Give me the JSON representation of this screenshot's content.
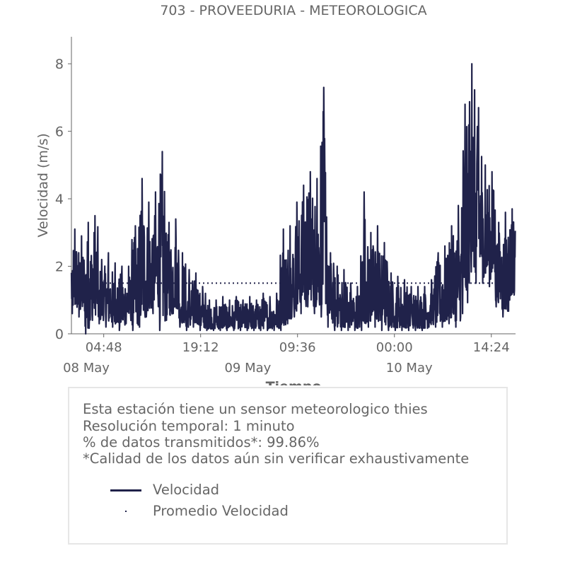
{
  "chart_data": {
    "type": "line",
    "title": "703 - PROVEEDURIA - METEOROLOGICA",
    "xlabel": "Tiempo",
    "ylabel": "Velocidad (m/s)",
    "ylim": [
      0,
      8.8
    ],
    "yticks": [
      0,
      2,
      4,
      6,
      8
    ],
    "x_range": [
      "2021-05-08 00:00",
      "2021-05-11 00:00"
    ],
    "xticks": [
      {
        "label": "04:48",
        "time": "2021-05-08 04:48"
      },
      {
        "label": "19:12",
        "time": "2021-05-08 19:12"
      },
      {
        "label": "09:36",
        "time": "2021-05-09 09:36"
      },
      {
        "label": "00:00",
        "time": "2021-05-10 00:00"
      },
      {
        "label": "14:24",
        "time": "2021-05-10 14:24"
      }
    ],
    "day_labels": [
      {
        "label": "08 May",
        "time": "2021-05-08 00:00"
      },
      {
        "label": "09 May",
        "time": "2021-05-09 00:00"
      },
      {
        "label": "10 May",
        "time": "2021-05-10 00:00"
      }
    ],
    "grid": false,
    "series": [
      {
        "name": "Velocidad",
        "color": "#20224a",
        "style": "solid",
        "hourly_envelope": [
          {
            "hour": "2021-05-08 00:00",
            "low": 0.6,
            "high": 3.1
          },
          {
            "hour": "2021-05-08 01:00",
            "low": 0.5,
            "high": 2.9
          },
          {
            "hour": "2021-05-08 02:00",
            "low": 0.0,
            "high": 3.3
          },
          {
            "hour": "2021-05-08 03:00",
            "low": 0.4,
            "high": 3.5
          },
          {
            "hour": "2021-05-08 04:00",
            "low": 0.3,
            "high": 2.2
          },
          {
            "hour": "2021-05-08 05:00",
            "low": 0.2,
            "high": 2.4
          },
          {
            "hour": "2021-05-08 06:00",
            "low": 0.2,
            "high": 2.1
          },
          {
            "hour": "2021-05-08 07:00",
            "low": 0.1,
            "high": 2.0
          },
          {
            "hour": "2021-05-08 08:00",
            "low": 0.3,
            "high": 2.0
          },
          {
            "hour": "2021-05-08 09:00",
            "low": 0.1,
            "high": 3.2
          },
          {
            "hour": "2021-05-08 10:00",
            "low": 0.2,
            "high": 4.6
          },
          {
            "hour": "2021-05-08 11:00",
            "low": 0.5,
            "high": 3.9
          },
          {
            "hour": "2021-05-08 12:00",
            "low": 0.6,
            "high": 4.2
          },
          {
            "hour": "2021-05-08 13:00",
            "low": 0.1,
            "high": 5.4
          },
          {
            "hour": "2021-05-08 14:00",
            "low": 0.4,
            "high": 3.3
          },
          {
            "hour": "2021-05-08 15:00",
            "low": 0.6,
            "high": 3.4
          },
          {
            "hour": "2021-05-08 16:00",
            "low": 0.2,
            "high": 2.4
          },
          {
            "hour": "2021-05-08 17:00",
            "low": 0.1,
            "high": 1.9
          },
          {
            "hour": "2021-05-08 18:00",
            "low": 0.2,
            "high": 1.8
          },
          {
            "hour": "2021-05-08 19:00",
            "low": 0.1,
            "high": 1.4
          },
          {
            "hour": "2021-05-08 20:00",
            "low": 0.1,
            "high": 1.0
          },
          {
            "hour": "2021-05-08 21:00",
            "low": 0.1,
            "high": 1.0
          },
          {
            "hour": "2021-05-08 22:00",
            "low": 0.1,
            "high": 1.1
          },
          {
            "hour": "2021-05-08 23:00",
            "low": 0.1,
            "high": 1.0
          },
          {
            "hour": "2021-05-09 00:00",
            "low": 0.1,
            "high": 1.1
          },
          {
            "hour": "2021-05-09 01:00",
            "low": 0.1,
            "high": 1.0
          },
          {
            "hour": "2021-05-09 02:00",
            "low": 0.1,
            "high": 1.1
          },
          {
            "hour": "2021-05-09 03:00",
            "low": 0.1,
            "high": 1.0
          },
          {
            "hour": "2021-05-09 04:00",
            "low": 0.1,
            "high": 1.2
          },
          {
            "hour": "2021-05-09 05:00",
            "low": 0.1,
            "high": 1.1
          },
          {
            "hour": "2021-05-09 06:00",
            "low": 0.1,
            "high": 1.2
          },
          {
            "hour": "2021-05-09 07:00",
            "low": 0.1,
            "high": 3.1
          },
          {
            "hour": "2021-05-09 08:00",
            "low": 0.3,
            "high": 3.2
          },
          {
            "hour": "2021-05-09 09:00",
            "low": 0.5,
            "high": 3.9
          },
          {
            "hour": "2021-05-09 10:00",
            "low": 0.6,
            "high": 4.4
          },
          {
            "hour": "2021-05-09 11:00",
            "low": 0.8,
            "high": 4.8
          },
          {
            "hour": "2021-05-09 12:00",
            "low": 0.6,
            "high": 4.6
          },
          {
            "hour": "2021-05-09 13:00",
            "low": 0.5,
            "high": 7.3
          },
          {
            "hour": "2021-05-09 14:00",
            "low": 0.2,
            "high": 2.4
          },
          {
            "hour": "2021-05-09 15:00",
            "low": 0.1,
            "high": 2.0
          },
          {
            "hour": "2021-05-09 16:00",
            "low": 0.1,
            "high": 1.9
          },
          {
            "hour": "2021-05-09 17:00",
            "low": 0.1,
            "high": 1.5
          },
          {
            "hour": "2021-05-09 18:00",
            "low": 0.1,
            "high": 1.4
          },
          {
            "hour": "2021-05-09 19:00",
            "low": 0.1,
            "high": 4.2
          },
          {
            "hour": "2021-05-09 20:00",
            "low": 0.2,
            "high": 3.0
          },
          {
            "hour": "2021-05-09 21:00",
            "low": 0.2,
            "high": 3.2
          },
          {
            "hour": "2021-05-09 22:00",
            "low": 0.1,
            "high": 2.7
          },
          {
            "hour": "2021-05-09 23:00",
            "low": 0.1,
            "high": 1.8
          },
          {
            "hour": "2021-05-10 00:00",
            "low": 0.1,
            "high": 1.7
          },
          {
            "hour": "2021-05-10 01:00",
            "low": 0.1,
            "high": 1.6
          },
          {
            "hour": "2021-05-10 02:00",
            "low": 0.1,
            "high": 1.4
          },
          {
            "hour": "2021-05-10 03:00",
            "low": 0.1,
            "high": 1.4
          },
          {
            "hour": "2021-05-10 04:00",
            "low": 0.1,
            "high": 1.4
          },
          {
            "hour": "2021-05-10 05:00",
            "low": 0.2,
            "high": 1.6
          },
          {
            "hour": "2021-05-10 06:00",
            "low": 0.2,
            "high": 2.4
          },
          {
            "hour": "2021-05-10 07:00",
            "low": 0.2,
            "high": 2.6
          },
          {
            "hour": "2021-05-10 08:00",
            "low": 0.3,
            "high": 3.2
          },
          {
            "hour": "2021-05-10 09:00",
            "low": 0.2,
            "high": 3.8
          },
          {
            "hour": "2021-05-10 10:00",
            "low": 0.6,
            "high": 6.8
          },
          {
            "hour": "2021-05-10 11:00",
            "low": 1.5,
            "high": 8.0
          },
          {
            "hour": "2021-05-10 12:00",
            "low": 1.5,
            "high": 6.7
          },
          {
            "hour": "2021-05-10 13:00",
            "low": 1.5,
            "high": 5.0
          },
          {
            "hour": "2021-05-10 14:00",
            "low": 1.4,
            "high": 4.8
          },
          {
            "hour": "2021-05-10 15:00",
            "low": 0.8,
            "high": 3.3
          },
          {
            "hour": "2021-05-10 16:00",
            "low": 0.5,
            "high": 3.6
          },
          {
            "hour": "2021-05-10 17:00",
            "low": 1.0,
            "high": 3.7
          }
        ]
      },
      {
        "name": "Promedio Velocidad",
        "color": "#20224a",
        "style": "dotted",
        "value": 1.5
      }
    ]
  },
  "info": {
    "line1": "Esta estación tiene un sensor meteorologico thies",
    "line2": "Resolución temporal: 1 minuto",
    "line3": "% de datos transmitidos*: 99.86%",
    "line4": "*Calidad de los datos aún sin verificar exhaustivamente"
  },
  "legend": {
    "velocidad": "Velocidad",
    "promedio": "Promedio Velocidad"
  }
}
